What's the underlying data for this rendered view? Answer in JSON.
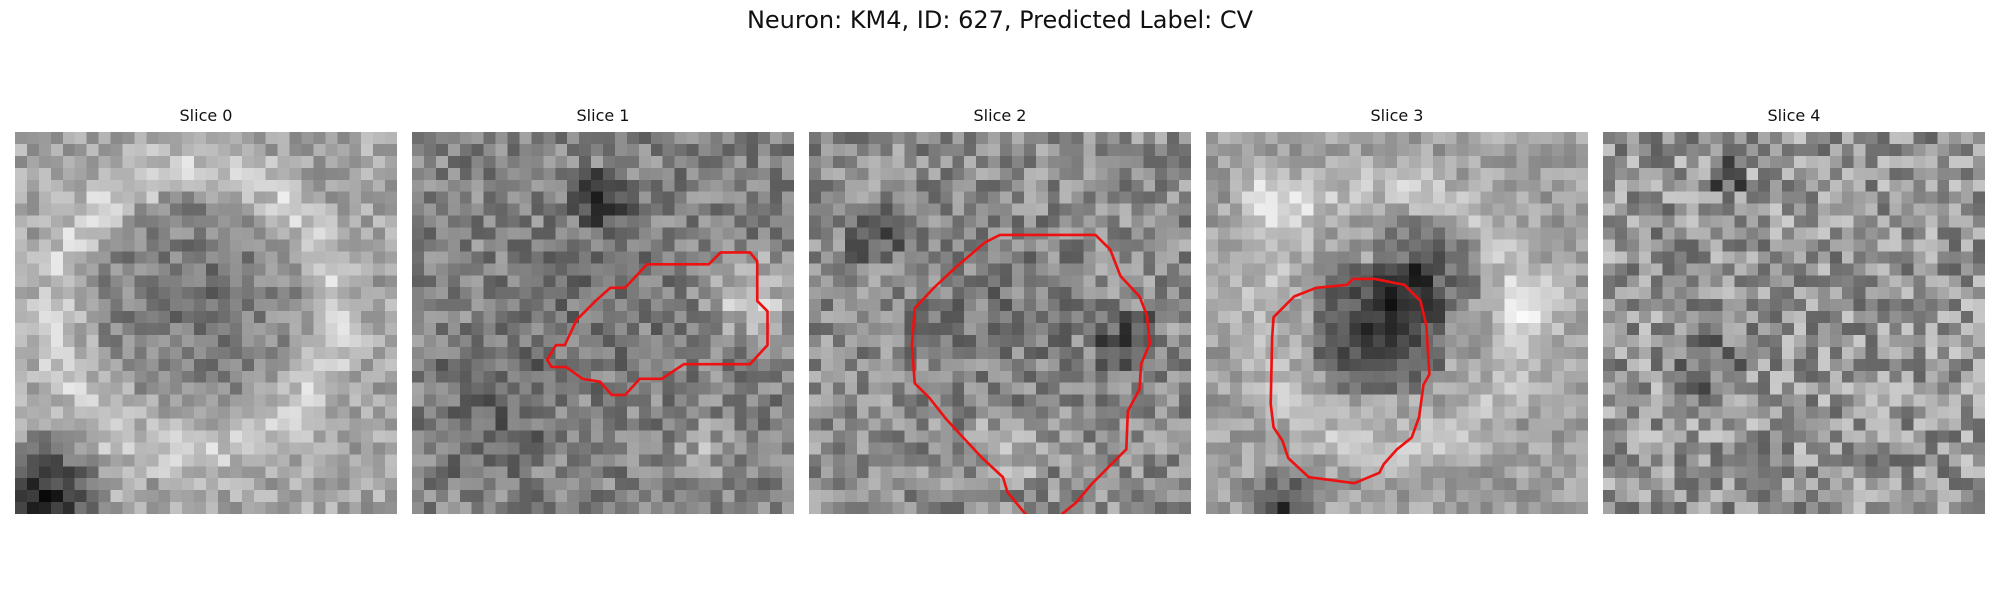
{
  "figure": {
    "title": "Neuron: KM4, ID: 627, Predicted Label: CV"
  },
  "panels": [
    {
      "label": "Slice 0",
      "has_contour": false
    },
    {
      "label": "Slice 1",
      "has_contour": true
    },
    {
      "label": "Slice 2",
      "has_contour": true
    },
    {
      "label": "Slice 3",
      "has_contour": true
    },
    {
      "label": "Slice 4",
      "has_contour": false
    }
  ],
  "colors": {
    "contour": "#ee1111",
    "background": "#ffffff"
  }
}
